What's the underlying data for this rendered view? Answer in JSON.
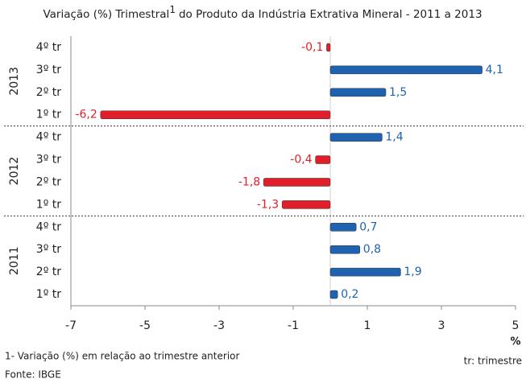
{
  "chart_data": {
    "type": "bar",
    "orientation": "horizontal",
    "title": "Variação (%) Trimestral",
    "title_note_marker": "1",
    "title_suffix": "do Produto da Indústria Extrativa Mineral - 2011 a 2013",
    "groups": [
      {
        "name": "2013",
        "categories": [
          "4º tr",
          "3º tr",
          "2º tr",
          "1º tr"
        ],
        "values": [
          -0.1,
          4.1,
          1.5,
          -6.2
        ],
        "value_labels": [
          "-0,1",
          "4,1",
          "1,5",
          "-6,2"
        ]
      },
      {
        "name": "2012",
        "categories": [
          "4º tr",
          "3º tr",
          "2º tr",
          "1º tr"
        ],
        "values": [
          1.4,
          -0.4,
          -1.8,
          -1.3
        ],
        "value_labels": [
          "1,4",
          "-0,4",
          "-1,8",
          "-1,3"
        ]
      },
      {
        "name": "2011",
        "categories": [
          "4º tr",
          "3º tr",
          "2º tr",
          "1º tr"
        ],
        "values": [
          0.7,
          0.8,
          1.9,
          0.2
        ],
        "value_labels": [
          "0,7",
          "0,8",
          "1,9",
          "0,2"
        ]
      }
    ],
    "positive_color": "#1f62b0",
    "negative_color": "#e11f2a",
    "xlim": [
      -7,
      5
    ],
    "xticks": [
      -7,
      -5,
      -3,
      -1,
      1,
      3,
      5
    ],
    "xlabel": "%",
    "footnote": "1- Variação (%) em relação ao trimestre anterior",
    "source": "Fonte: IBGE",
    "legend_note": "tr: trimestre"
  }
}
